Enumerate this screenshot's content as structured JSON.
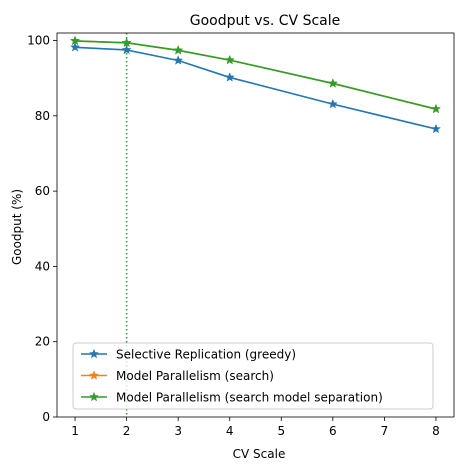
{
  "chart_data": {
    "type": "line",
    "title": "Goodput vs. CV Scale",
    "xlabel": "CV Scale",
    "ylabel": "Goodput (%)",
    "xlim": [
      0.65,
      8.35
    ],
    "ylim": [
      0,
      102
    ],
    "xticks": [
      1,
      2,
      3,
      4,
      5,
      6,
      7,
      8
    ],
    "xtick_labels": [
      "1",
      "2",
      "3",
      "4",
      "5",
      "6",
      "7",
      "8"
    ],
    "yticks": [
      0,
      20,
      40,
      60,
      80,
      100
    ],
    "ytick_labels": [
      "0",
      "20",
      "40",
      "60",
      "80",
      "100"
    ],
    "grid": false,
    "legend_position": "lower-left",
    "vline": {
      "x": 2,
      "color": "#2ca02c",
      "style": "dotted"
    },
    "series": [
      {
        "name": "Selective Replication (greedy)",
        "color": "#1f77b4",
        "marker": "star",
        "x": [
          1,
          2,
          3,
          4,
          6,
          8
        ],
        "y": [
          98.2,
          97.5,
          94.7,
          90.2,
          83.1,
          76.5
        ]
      },
      {
        "name": "Model Parallelism (search)",
        "color": "#ff7f0e",
        "marker": "star",
        "x": [
          1,
          2,
          3,
          4,
          6,
          8
        ],
        "y": [
          99.9,
          99.4,
          97.4,
          94.8,
          88.6,
          81.8
        ]
      },
      {
        "name": "Model Parallelism (search model separation)",
        "color": "#2ca02c",
        "marker": "star",
        "x": [
          1,
          2,
          3,
          4,
          6,
          8
        ],
        "y": [
          99.9,
          99.4,
          97.4,
          94.8,
          88.6,
          81.8
        ]
      }
    ]
  }
}
